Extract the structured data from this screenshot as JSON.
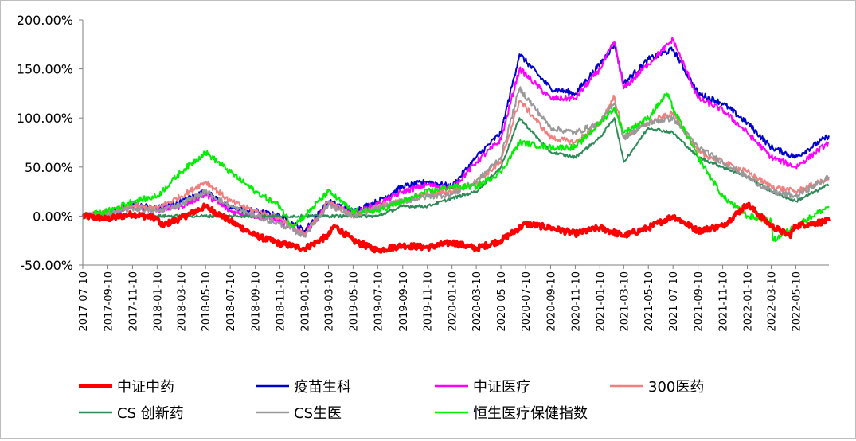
{
  "chart_data": {
    "type": "line",
    "title": "",
    "xlabel": "",
    "ylabel": "",
    "ylim": [
      -50,
      200
    ],
    "y_unit": "%",
    "grid": false,
    "legend_position": "bottom",
    "yticks": [
      "200.00%",
      "150.00%",
      "100.00%",
      "50.00%",
      "0.00%",
      "-50.00%"
    ],
    "ytick_values": [
      200,
      150,
      100,
      50,
      0,
      -50
    ],
    "x_start": "2017-07-10",
    "x_end": "2022-07-31",
    "xticks": [
      "2017-07-10",
      "2017-09-10",
      "2017-11-10",
      "2018-01-10",
      "2018-03-10",
      "2018-05-10",
      "2018-07-10",
      "2018-09-10",
      "2018-11-10",
      "2019-01-10",
      "2019-03-10",
      "2019-05-10",
      "2019-07-10",
      "2019-09-10",
      "2019-11-10",
      "2020-01-10",
      "2020-03-10",
      "2020-05-10",
      "2020-07-10",
      "2020-09-10",
      "2020-11-10",
      "2021-01-10",
      "2021-03-10",
      "2021-05-10",
      "2021-07-10",
      "2021-09-10",
      "2021-11-10",
      "2022-01-10",
      "2022-03-10",
      "2022-05-10"
    ],
    "series": [
      {
        "name": "中证中药",
        "color": "#ff0000",
        "width": 4,
        "points": [
          [
            "2017-07-10",
            0
          ],
          [
            "2017-09-10",
            -3
          ],
          [
            "2017-11-10",
            2
          ],
          [
            "2018-01-10",
            -2
          ],
          [
            "2018-01-20",
            -10
          ],
          [
            "2018-03-10",
            -2
          ],
          [
            "2018-05-10",
            10
          ],
          [
            "2018-07-10",
            -5
          ],
          [
            "2018-09-10",
            -20
          ],
          [
            "2018-11-10",
            -28
          ],
          [
            "2019-01-10",
            -33
          ],
          [
            "2019-03-10",
            -20
          ],
          [
            "2019-03-25",
            -10
          ],
          [
            "2019-05-10",
            -25
          ],
          [
            "2019-07-10",
            -35
          ],
          [
            "2019-09-10",
            -30
          ],
          [
            "2019-11-10",
            -32
          ],
          [
            "2020-01-10",
            -27
          ],
          [
            "2020-03-10",
            -33
          ],
          [
            "2020-05-10",
            -25
          ],
          [
            "2020-07-10",
            -8
          ],
          [
            "2020-09-10",
            -12
          ],
          [
            "2020-11-10",
            -18
          ],
          [
            "2021-01-10",
            -12
          ],
          [
            "2021-03-10",
            -20
          ],
          [
            "2021-05-10",
            -12
          ],
          [
            "2021-07-10",
            0
          ],
          [
            "2021-09-10",
            -15
          ],
          [
            "2021-11-10",
            -10
          ],
          [
            "2022-01-10",
            12
          ],
          [
            "2022-03-10",
            -10
          ],
          [
            "2022-04-25",
            -20
          ],
          [
            "2022-05-10",
            -10
          ],
          [
            "2022-07-31",
            -5
          ]
        ]
      },
      {
        "name": "疫苗生科",
        "color": "#0000cc",
        "width": 2,
        "points": [
          [
            "2017-07-10",
            0
          ],
          [
            "2017-09-10",
            3
          ],
          [
            "2017-11-10",
            12
          ],
          [
            "2018-01-10",
            8
          ],
          [
            "2018-03-10",
            15
          ],
          [
            "2018-05-10",
            25
          ],
          [
            "2018-07-10",
            8
          ],
          [
            "2018-09-10",
            5
          ],
          [
            "2018-11-10",
            0
          ],
          [
            "2019-01-10",
            -15
          ],
          [
            "2019-03-10",
            15
          ],
          [
            "2019-05-10",
            5
          ],
          [
            "2019-07-10",
            15
          ],
          [
            "2019-09-10",
            30
          ],
          [
            "2019-11-10",
            35
          ],
          [
            "2020-01-10",
            30
          ],
          [
            "2020-03-10",
            60
          ],
          [
            "2020-05-10",
            85
          ],
          [
            "2020-06-25",
            165
          ],
          [
            "2020-09-10",
            130
          ],
          [
            "2020-11-10",
            125
          ],
          [
            "2021-01-10",
            155
          ],
          [
            "2021-02-15",
            175
          ],
          [
            "2021-03-10",
            135
          ],
          [
            "2021-05-10",
            160
          ],
          [
            "2021-07-10",
            170
          ],
          [
            "2021-09-10",
            125
          ],
          [
            "2021-11-10",
            115
          ],
          [
            "2022-01-10",
            95
          ],
          [
            "2022-03-10",
            70
          ],
          [
            "2022-05-10",
            60
          ],
          [
            "2022-07-31",
            82
          ]
        ]
      },
      {
        "name": "中证医疗",
        "color": "#ff00ff",
        "width": 2,
        "points": [
          [
            "2017-07-10",
            0
          ],
          [
            "2017-09-10",
            2
          ],
          [
            "2017-11-10",
            10
          ],
          [
            "2018-01-10",
            6
          ],
          [
            "2018-03-10",
            10
          ],
          [
            "2018-05-10",
            22
          ],
          [
            "2018-07-10",
            5
          ],
          [
            "2018-09-10",
            0
          ],
          [
            "2018-11-10",
            -5
          ],
          [
            "2019-01-10",
            -18
          ],
          [
            "2019-03-10",
            12
          ],
          [
            "2019-05-10",
            2
          ],
          [
            "2019-07-10",
            12
          ],
          [
            "2019-09-10",
            25
          ],
          [
            "2019-11-10",
            32
          ],
          [
            "2020-01-10",
            28
          ],
          [
            "2020-03-10",
            55
          ],
          [
            "2020-05-10",
            78
          ],
          [
            "2020-06-25",
            150
          ],
          [
            "2020-09-10",
            120
          ],
          [
            "2020-11-10",
            120
          ],
          [
            "2021-01-10",
            150
          ],
          [
            "2021-02-15",
            178
          ],
          [
            "2021-03-10",
            130
          ],
          [
            "2021-05-10",
            155
          ],
          [
            "2021-07-10",
            180
          ],
          [
            "2021-09-10",
            120
          ],
          [
            "2021-11-10",
            108
          ],
          [
            "2022-01-10",
            85
          ],
          [
            "2022-03-10",
            60
          ],
          [
            "2022-05-10",
            50
          ],
          [
            "2022-07-31",
            75
          ]
        ]
      },
      {
        "name": "300医药",
        "color": "#f08080",
        "width": 2,
        "points": [
          [
            "2017-07-10",
            0
          ],
          [
            "2017-09-10",
            3
          ],
          [
            "2017-11-10",
            10
          ],
          [
            "2018-01-10",
            8
          ],
          [
            "2018-03-10",
            20
          ],
          [
            "2018-05-10",
            35
          ],
          [
            "2018-07-10",
            15
          ],
          [
            "2018-09-10",
            5
          ],
          [
            "2018-11-10",
            -2
          ],
          [
            "2019-01-10",
            -20
          ],
          [
            "2019-03-10",
            15
          ],
          [
            "2019-05-10",
            0
          ],
          [
            "2019-07-10",
            10
          ],
          [
            "2019-09-10",
            15
          ],
          [
            "2019-11-10",
            22
          ],
          [
            "2020-01-10",
            25
          ],
          [
            "2020-03-10",
            35
          ],
          [
            "2020-05-10",
            55
          ],
          [
            "2020-06-25",
            118
          ],
          [
            "2020-09-10",
            80
          ],
          [
            "2020-11-10",
            75
          ],
          [
            "2021-01-10",
            95
          ],
          [
            "2021-02-15",
            122
          ],
          [
            "2021-03-10",
            80
          ],
          [
            "2021-05-10",
            95
          ],
          [
            "2021-07-10",
            105
          ],
          [
            "2021-09-10",
            65
          ],
          [
            "2021-11-10",
            55
          ],
          [
            "2022-01-10",
            45
          ],
          [
            "2022-03-10",
            30
          ],
          [
            "2022-05-10",
            25
          ],
          [
            "2022-07-31",
            38
          ]
        ]
      },
      {
        "name": "CS 创新药",
        "color": "#2e8b57",
        "width": 2,
        "points": [
          [
            "2017-07-10",
            0
          ],
          [
            "2017-09-10",
            0
          ],
          [
            "2017-11-10",
            0
          ],
          [
            "2018-01-10",
            0
          ],
          [
            "2018-03-10",
            0
          ],
          [
            "2018-05-10",
            0
          ],
          [
            "2018-07-10",
            0
          ],
          [
            "2018-09-10",
            0
          ],
          [
            "2018-11-10",
            0
          ],
          [
            "2019-01-10",
            0
          ],
          [
            "2019-03-10",
            0
          ],
          [
            "2019-05-10",
            0
          ],
          [
            "2019-07-10",
            0
          ],
          [
            "2019-09-10",
            10
          ],
          [
            "2019-11-10",
            10
          ],
          [
            "2020-01-10",
            18
          ],
          [
            "2020-03-10",
            25
          ],
          [
            "2020-05-10",
            50
          ],
          [
            "2020-06-25",
            100
          ],
          [
            "2020-09-10",
            65
          ],
          [
            "2020-11-10",
            60
          ],
          [
            "2021-01-10",
            80
          ],
          [
            "2021-02-15",
            100
          ],
          [
            "2021-03-10",
            55
          ],
          [
            "2021-05-10",
            90
          ],
          [
            "2021-07-10",
            85
          ],
          [
            "2021-09-10",
            60
          ],
          [
            "2021-11-10",
            50
          ],
          [
            "2022-01-10",
            40
          ],
          [
            "2022-03-10",
            25
          ],
          [
            "2022-05-10",
            15
          ],
          [
            "2022-07-31",
            32
          ]
        ]
      },
      {
        "name": "CS生医",
        "color": "#999999",
        "width": 2,
        "points": [
          [
            "2017-07-10",
            0
          ],
          [
            "2017-09-10",
            2
          ],
          [
            "2017-11-10",
            8
          ],
          [
            "2018-01-10",
            5
          ],
          [
            "2018-03-10",
            12
          ],
          [
            "2018-05-10",
            25
          ],
          [
            "2018-07-10",
            10
          ],
          [
            "2018-09-10",
            0
          ],
          [
            "2018-11-10",
            -8
          ],
          [
            "2019-01-10",
            -20
          ],
          [
            "2019-03-10",
            12
          ],
          [
            "2019-05-10",
            0
          ],
          [
            "2019-07-10",
            8
          ],
          [
            "2019-09-10",
            15
          ],
          [
            "2019-11-10",
            20
          ],
          [
            "2020-01-10",
            22
          ],
          [
            "2020-03-10",
            35
          ],
          [
            "2020-05-10",
            60
          ],
          [
            "2020-06-25",
            130
          ],
          [
            "2020-09-10",
            90
          ],
          [
            "2020-11-10",
            85
          ],
          [
            "2021-01-10",
            95
          ],
          [
            "2021-02-15",
            115
          ],
          [
            "2021-03-10",
            80
          ],
          [
            "2021-05-10",
            95
          ],
          [
            "2021-07-10",
            100
          ],
          [
            "2021-09-10",
            70
          ],
          [
            "2021-11-10",
            55
          ],
          [
            "2022-01-10",
            40
          ],
          [
            "2022-03-10",
            25
          ],
          [
            "2022-05-10",
            20
          ],
          [
            "2022-07-31",
            40
          ]
        ]
      },
      {
        "name": "恒生医疗保健指数",
        "color": "#00ee00",
        "width": 2,
        "points": [
          [
            "2017-07-10",
            0
          ],
          [
            "2017-09-10",
            5
          ],
          [
            "2017-11-10",
            15
          ],
          [
            "2018-01-10",
            20
          ],
          [
            "2018-03-10",
            45
          ],
          [
            "2018-05-10",
            65
          ],
          [
            "2018-07-10",
            45
          ],
          [
            "2018-09-10",
            25
          ],
          [
            "2018-11-10",
            10
          ],
          [
            "2018-12-10",
            -10
          ],
          [
            "2019-01-10",
            0
          ],
          [
            "2019-03-10",
            25
          ],
          [
            "2019-05-10",
            5
          ],
          [
            "2019-07-10",
            5
          ],
          [
            "2019-09-10",
            15
          ],
          [
            "2019-11-10",
            25
          ],
          [
            "2020-01-10",
            30
          ],
          [
            "2020-03-10",
            30
          ],
          [
            "2020-05-10",
            45
          ],
          [
            "2020-06-25",
            75
          ],
          [
            "2020-09-10",
            70
          ],
          [
            "2020-11-10",
            70
          ],
          [
            "2021-01-10",
            95
          ],
          [
            "2021-02-15",
            110
          ],
          [
            "2021-03-10",
            85
          ],
          [
            "2021-05-10",
            100
          ],
          [
            "2021-06-25",
            125
          ],
          [
            "2021-07-10",
            110
          ],
          [
            "2021-09-10",
            60
          ],
          [
            "2021-11-10",
            20
          ],
          [
            "2022-01-10",
            0
          ],
          [
            "2022-03-10",
            -5
          ],
          [
            "2022-03-15",
            -25
          ],
          [
            "2022-05-10",
            -10
          ],
          [
            "2022-07-31",
            10
          ]
        ]
      }
    ]
  }
}
